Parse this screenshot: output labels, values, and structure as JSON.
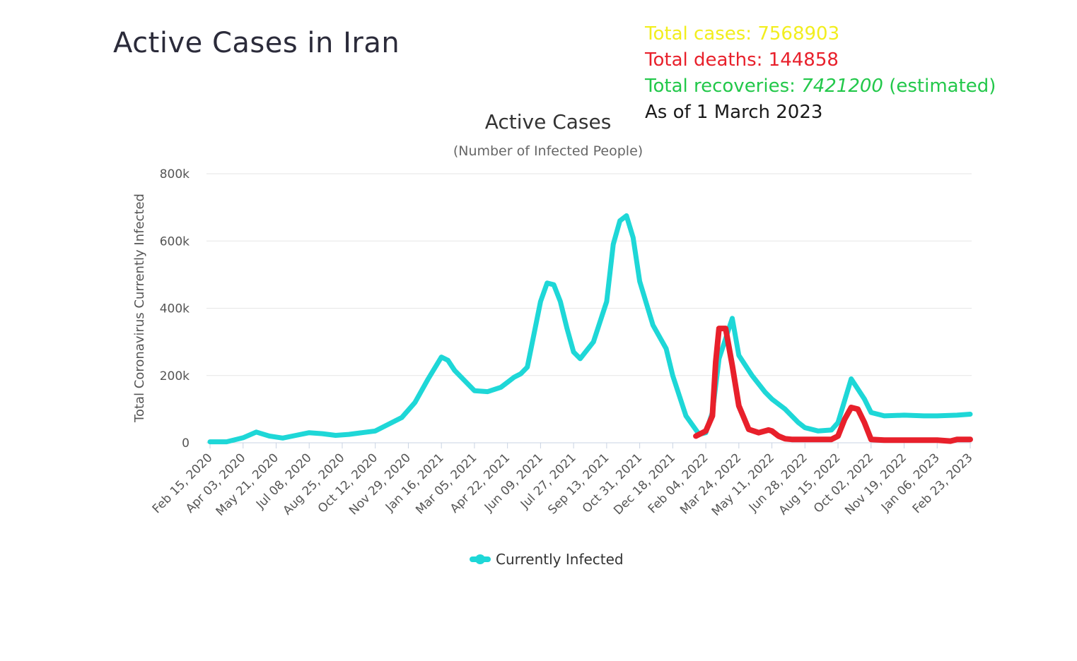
{
  "page": {
    "title": "Active Cases in Iran"
  },
  "stats": {
    "total_cases": "Total cases: 7568903",
    "total_deaths": "Total deaths: 144858",
    "recoveries_prefix": "Total recoveries: ",
    "recoveries_value": "7421200",
    "recoveries_suffix": " (estimated)",
    "as_of": "As of 1 March 2023"
  },
  "colors": {
    "series": "#1ed7d7",
    "overlay": "#e8202b",
    "grid": "#e6e6e6"
  },
  "chart_data": {
    "type": "line",
    "title": "Active Cases",
    "subtitle": "(Number of Infected People)",
    "ylabel": "Total Coronavirus Currently Infected",
    "xlabel": "",
    "ylim": [
      0,
      800000
    ],
    "yticks": [
      0,
      200000,
      400000,
      600000,
      800000
    ],
    "ytick_labels": [
      "0",
      "200k",
      "400k",
      "600k",
      "800k"
    ],
    "x_tick_labels": [
      "Feb 15, 2020",
      "Apr 03, 2020",
      "May 21, 2020",
      "Jul 08, 2020",
      "Aug 25, 2020",
      "Oct 12, 2020",
      "Nov 29, 2020",
      "Jan 16, 2021",
      "Mar 05, 2021",
      "Apr 22, 2021",
      "Jun 09, 2021",
      "Jul 27, 2021",
      "Sep 13, 2021",
      "Oct 31, 2021",
      "Dec 18, 2021",
      "Feb 04, 2022",
      "Mar 24, 2022",
      "May 11, 2022",
      "Jun 28, 2022",
      "Aug 15, 2022",
      "Oct 02, 2022",
      "Nov 19, 2022",
      "Jan 06, 2023",
      "Feb 23, 2023"
    ],
    "grid": true,
    "legend": {
      "position": "bottom-center",
      "entries": [
        "Currently Infected"
      ]
    },
    "series": [
      {
        "name": "Currently Infected",
        "x": [
          0,
          0.5,
          1,
          1.4,
          1.8,
          2.2,
          2.6,
          3,
          3.4,
          3.8,
          4.2,
          4.6,
          5,
          5.4,
          5.8,
          6.2,
          6.6,
          7,
          7.2,
          7.4,
          7.8,
          8,
          8.4,
          8.8,
          9,
          9.2,
          9.4,
          9.6,
          10,
          10.2,
          10.4,
          10.6,
          10.8,
          11,
          11.2,
          11.6,
          12,
          12.2,
          12.4,
          12.6,
          12.8,
          13,
          13.4,
          13.8,
          14,
          14.4,
          14.8,
          15,
          15.2,
          15.4,
          15.8,
          16,
          16.4,
          16.8,
          17,
          17.4,
          17.8,
          18,
          18.4,
          18.8,
          19,
          19.4,
          19.8,
          20,
          20.4,
          21,
          21.6,
          22,
          22.6,
          23
        ],
        "y": [
          3000,
          3000,
          15000,
          32000,
          20000,
          14000,
          22000,
          30000,
          27000,
          22000,
          25000,
          30000,
          35000,
          55000,
          75000,
          120000,
          190000,
          255000,
          245000,
          215000,
          175000,
          155000,
          152000,
          165000,
          180000,
          195000,
          205000,
          225000,
          420000,
          475000,
          470000,
          420000,
          340000,
          270000,
          250000,
          300000,
          420000,
          590000,
          660000,
          675000,
          610000,
          480000,
          350000,
          280000,
          200000,
          80000,
          25000,
          30000,
          90000,
          250000,
          370000,
          260000,
          200000,
          150000,
          130000,
          100000,
          60000,
          45000,
          35000,
          38000,
          60000,
          190000,
          130000,
          90000,
          80000,
          82000,
          80000,
          80000,
          82000,
          85000
        ]
      },
      {
        "name": "",
        "x": [
          14.7,
          15,
          15.2,
          15.3,
          15.4,
          15.6,
          15.8,
          16,
          16.3,
          16.6,
          16.9,
          17,
          17.2,
          17.4,
          17.6,
          17.8,
          18,
          18.4,
          18.8,
          19,
          19.2,
          19.4,
          19.6,
          19.8,
          20,
          20.4,
          21,
          21.6,
          22,
          22.4,
          22.6,
          23
        ],
        "y": [
          20000,
          35000,
          80000,
          240000,
          340000,
          340000,
          230000,
          110000,
          40000,
          30000,
          38000,
          35000,
          20000,
          12000,
          10000,
          10000,
          10000,
          10000,
          10000,
          20000,
          70000,
          105000,
          100000,
          60000,
          10000,
          8000,
          8000,
          8000,
          8000,
          5000,
          10000,
          10000
        ]
      }
    ]
  }
}
